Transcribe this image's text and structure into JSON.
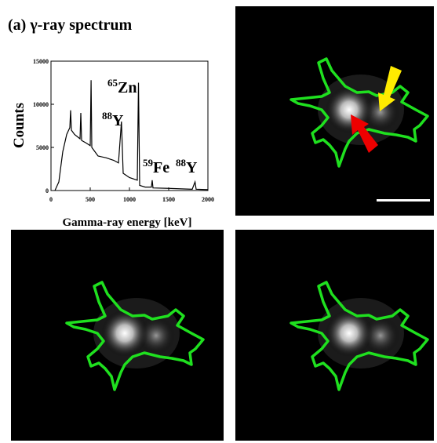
{
  "chart_data": {
    "type": "line",
    "title": "(a) γ-ray spectrum",
    "xlabel": "Gamma-ray energy [keV]",
    "ylabel": "Counts",
    "x": [
      50,
      100,
      150,
      200,
      240,
      250,
      260,
      300,
      370,
      380,
      390,
      450,
      500,
      511,
      520,
      600,
      700,
      800,
      860,
      898,
      920,
      1000,
      1100,
      1115,
      1130,
      1200,
      1280,
      1290,
      1300,
      1500,
      1800,
      1836,
      1850,
      2000
    ],
    "values": [
      0,
      1000,
      4500,
      6500,
      7300,
      9300,
      7000,
      6500,
      6000,
      9000,
      5800,
      5500,
      5200,
      12800,
      5000,
      4000,
      3800,
      3500,
      3200,
      8000,
      2000,
      1500,
      1200,
      12500,
      600,
      400,
      400,
      1200,
      300,
      250,
      150,
      1000,
      150,
      100
    ],
    "color": "#000000",
    "xlim": [
      0,
      2000
    ],
    "ylim": [
      0,
      15000
    ],
    "xticks": [
      0,
      500,
      1000,
      1500,
      2000
    ],
    "yticks": [
      0,
      5000,
      10000,
      15000
    ],
    "annotations": [
      {
        "mass": "65",
        "element": "Zn"
      },
      {
        "mass": "88",
        "element": "Y"
      },
      {
        "mass": "59",
        "element": "Fe"
      },
      {
        "mass": "88",
        "element": "Y"
      }
    ]
  }
}
